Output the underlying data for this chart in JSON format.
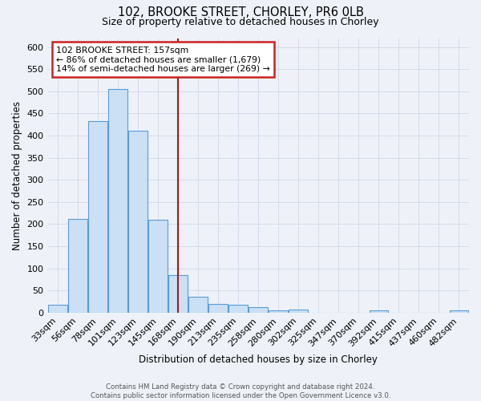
{
  "title_line1": "102, BROOKE STREET, CHORLEY, PR6 0LB",
  "title_line2": "Size of property relative to detached houses in Chorley",
  "xlabel": "Distribution of detached houses by size in Chorley",
  "ylabel": "Number of detached properties",
  "bar_labels": [
    "33sqm",
    "56sqm",
    "78sqm",
    "101sqm",
    "123sqm",
    "145sqm",
    "168sqm",
    "190sqm",
    "213sqm",
    "235sqm",
    "258sqm",
    "280sqm",
    "302sqm",
    "325sqm",
    "347sqm",
    "370sqm",
    "392sqm",
    "415sqm",
    "437sqm",
    "460sqm",
    "482sqm"
  ],
  "bar_values": [
    17,
    212,
    432,
    505,
    410,
    209,
    85,
    36,
    20,
    18,
    13,
    6,
    7,
    0,
    0,
    0,
    5,
    0,
    0,
    0,
    6
  ],
  "bar_color": "#cce0f5",
  "bar_edgecolor": "#5b9bd5",
  "ref_line_x": 6.0,
  "ref_line_color": "#9b1c1c",
  "annotation_text": "102 BROOKE STREET: 157sqm\n← 86% of detached houses are smaller (1,679)\n14% of semi-detached houses are larger (269) →",
  "annotation_box_color": "#ffffff",
  "annotation_box_edgecolor": "#cc2222",
  "ylim": [
    0,
    620
  ],
  "yticks": [
    0,
    50,
    100,
    150,
    200,
    250,
    300,
    350,
    400,
    450,
    500,
    550,
    600
  ],
  "footer_line1": "Contains HM Land Registry data © Crown copyright and database right 2024.",
  "footer_line2": "Contains public sector information licensed under the Open Government Licence v3.0.",
  "background_color": "#eef2f8",
  "plot_bg_color": "#eef2f8",
  "grid_color": "#d0d8e8"
}
